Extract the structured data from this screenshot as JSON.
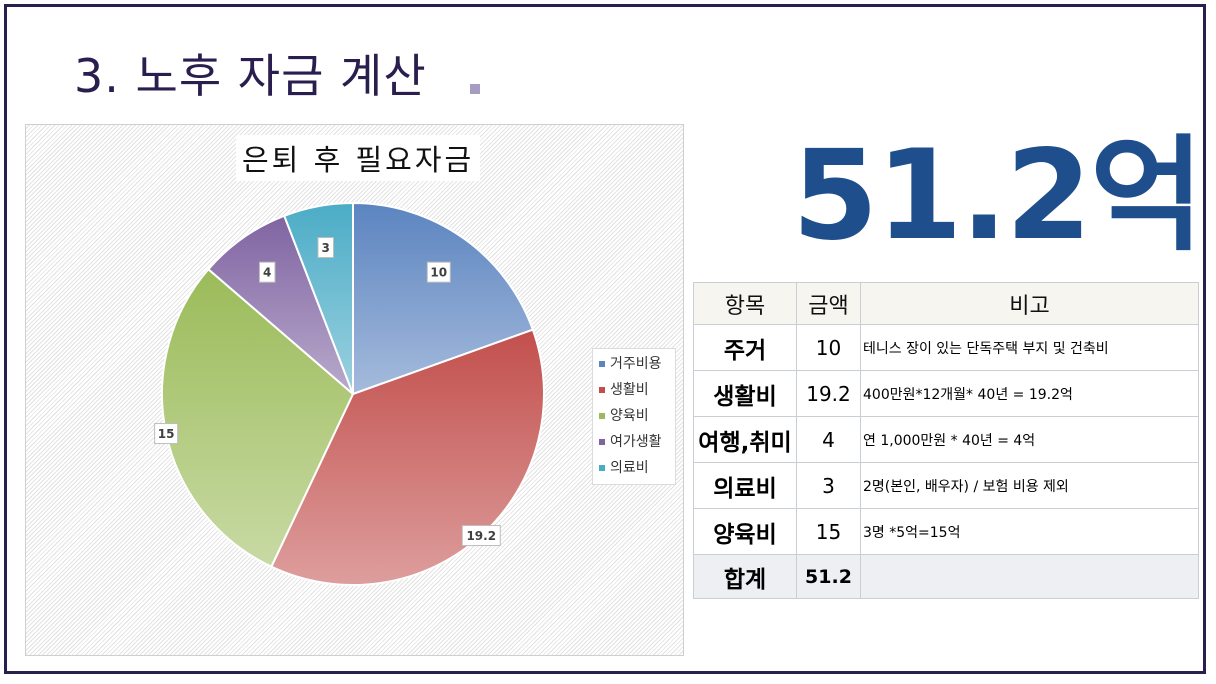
{
  "slide": {
    "title": "3. 노후 자금 계산",
    "total_big": "51.2억"
  },
  "chart_data": {
    "type": "pie",
    "title": "은퇴 후 필요자금",
    "categories": [
      "거주비용",
      "생활비",
      "양육비",
      "여가생활",
      "의료비"
    ],
    "values": [
      10,
      19.2,
      15,
      4,
      3
    ],
    "data_labels": [
      "10",
      "19.2",
      "15",
      "4",
      "3"
    ],
    "colors": [
      "#5b84c0",
      "#c24f4c",
      "#9bbb59",
      "#8064a2",
      "#4bacc6"
    ],
    "legend": "right"
  },
  "table": {
    "headers": [
      "항목",
      "금액",
      "비고"
    ],
    "rows": [
      {
        "item": "주거",
        "amount": "10",
        "note": "테니스 장이 있는 단독주택 부지 및 건축비"
      },
      {
        "item": "생활비",
        "amount": "19.2",
        "note": "400만원*12개월* 40년 = 19.2억"
      },
      {
        "item": "여행,취미",
        "amount": "4",
        "note": "연 1,000만원 * 40년 = 4억"
      },
      {
        "item": "의료비",
        "amount": "3",
        "note": "2명(본인, 배우자) / 보험 비용 제외"
      },
      {
        "item": "양육비",
        "amount": "15",
        "note": "3명 *5억=15억"
      }
    ],
    "total": {
      "item": "합계",
      "amount": "51.2",
      "note": ""
    }
  }
}
